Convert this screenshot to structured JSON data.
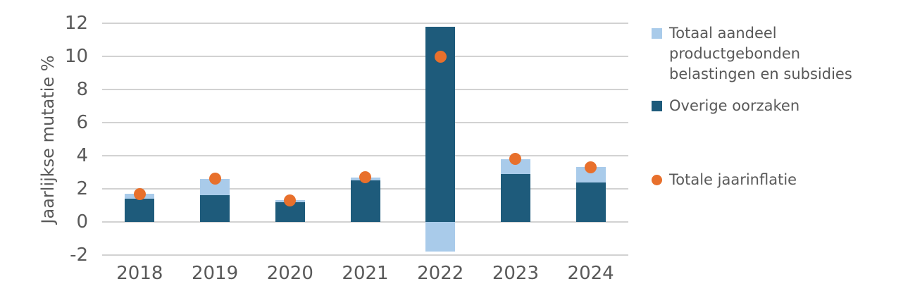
{
  "chart_data": {
    "type": "bar",
    "stacked": true,
    "title": "",
    "categories": [
      "2018",
      "2019",
      "2020",
      "2021",
      "2022",
      "2023",
      "2024"
    ],
    "series": [
      {
        "name": "Overige oorzaken",
        "color": "#1e5b7b",
        "values": [
          1.4,
          1.6,
          1.2,
          2.5,
          11.8,
          2.9,
          2.4
        ]
      },
      {
        "name": "Totaal aandeel productgebonden belastingen en subsidies",
        "color": "#a9cbea",
        "values": [
          0.3,
          1.0,
          0.1,
          0.2,
          -1.8,
          0.9,
          0.9
        ]
      }
    ],
    "point_series": {
      "name": "Totale jaarinflatie",
      "color": "#e8702c",
      "values": [
        1.7,
        2.6,
        1.3,
        2.7,
        10.0,
        3.8,
        3.3
      ]
    },
    "xlabel": "",
    "ylabel": "Jaarlijkse mutatie %",
    "ylim": [
      -2,
      12
    ],
    "ytick_step": 2,
    "y_ticks": [
      12,
      10,
      8,
      6,
      4,
      2,
      0,
      -2
    ],
    "grid": true,
    "legend_position": "right"
  },
  "legend": {
    "items": [
      {
        "label": "Totaal aandeel productgebonden belastingen en subsidies",
        "lines": [
          "Totaal aandeel",
          "productgebonden",
          "belastingen en subsidies"
        ],
        "marker": "square",
        "color": "#a9cbea"
      },
      {
        "label": "Overige oorzaken",
        "lines": [
          "Overige oorzaken"
        ],
        "marker": "square",
        "color": "#1e5b7b"
      },
      {
        "label": "Totale jaarinflatie",
        "lines": [
          "Totale jaarinflatie"
        ],
        "marker": "circle",
        "color": "#e8702c"
      }
    ]
  },
  "colors": {
    "text": "#595959",
    "gridline": "#d2d2d2",
    "background": "#ffffff",
    "bar_dark": "#1e5b7b",
    "bar_light": "#a9cbea",
    "dot_orange": "#e8702c"
  }
}
